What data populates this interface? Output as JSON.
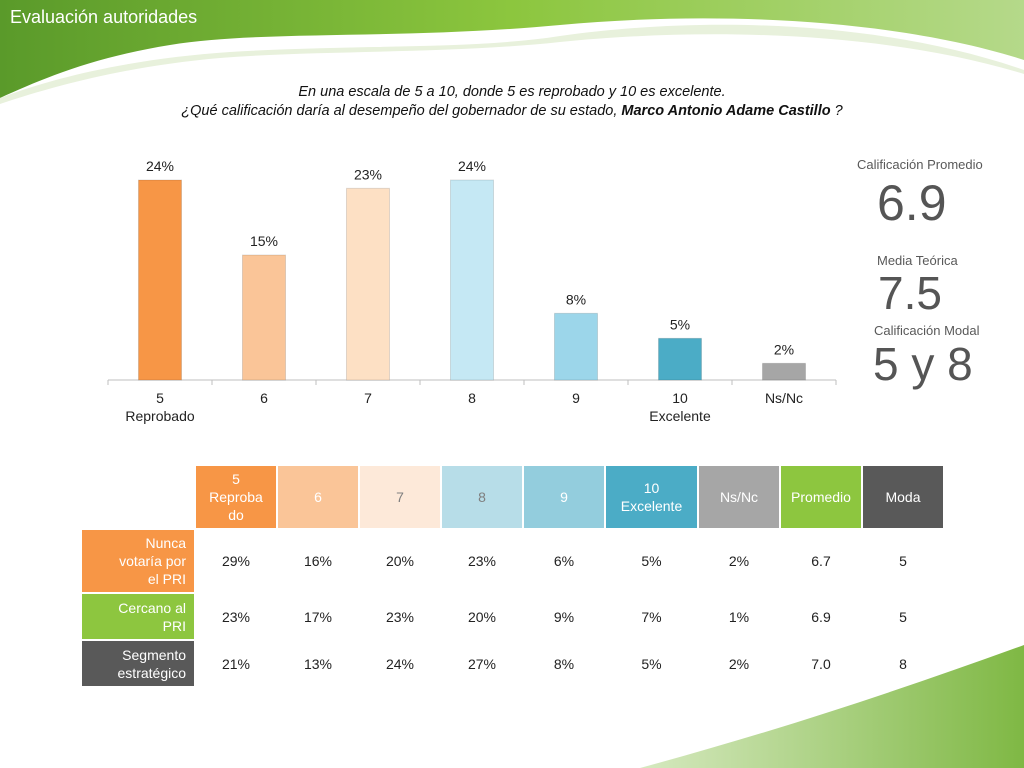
{
  "page_title": "Evaluación autoridades",
  "question": {
    "line1": "En una escala de 5 a 10, donde 5 es reprobado y 10 es excelente.",
    "line2_prefix": "¿Qué calificación daría al desempeño del gobernador de su estado, ",
    "line2_bold": "Marco Antonio Adame Castillo",
    "line2_suffix": " ?"
  },
  "stats": {
    "avg_label": "Calificación Promedio",
    "avg_value": "6.9",
    "theoretical_label": "Media Teórica",
    "theoretical_value": "7.5",
    "mode_label": "Calificación Modal",
    "mode_value": "5 y 8"
  },
  "colors": {
    "green": "#8dc63f",
    "dark": "#555555",
    "orange": "#f7964a"
  },
  "chart_data": {
    "type": "bar",
    "categories": [
      "5\nReprobado",
      "6",
      "7",
      "8",
      "9",
      "10\nExcelente",
      "Ns/Nc"
    ],
    "values": [
      24,
      15,
      23,
      24,
      8,
      5,
      2
    ],
    "data_labels": [
      "24%",
      "15%",
      "23%",
      "24%",
      "8%",
      "5%",
      "2%"
    ],
    "bar_colors": [
      "#f79646",
      "#fac598",
      "#fde0c4",
      "#c5e8f4",
      "#9cd6ea",
      "#4bacc6",
      "#a6a6a6"
    ],
    "ylim": [
      0,
      30
    ],
    "grid": false
  },
  "table": {
    "headers": [
      "5\nReproba\ndo",
      "6",
      "7",
      "8",
      "9",
      "10\nExcelente",
      "Ns/Nc",
      "Promedio",
      "Moda"
    ],
    "header_colors": [
      "#f79646",
      "#fac598",
      "#fde9d9",
      "#b7dde8",
      "#93cddd",
      "#4bacc6",
      "#a6a6a6",
      "#8dc63f",
      "#595959"
    ],
    "header_text_colors": [
      "#ffffff",
      "#ffffff",
      "#7f7f7f",
      "#7f7f7f",
      "#ffffff",
      "#ffffff",
      "#ffffff",
      "#ffffff",
      "#ffffff"
    ],
    "rows": [
      {
        "label": "Nunca\nvotaría por\nel PRI",
        "color": "#f79646",
        "values": [
          "29%",
          "16%",
          "20%",
          "23%",
          "6%",
          "5%",
          "2%",
          "6.7",
          "5"
        ]
      },
      {
        "label": "Cercano al\nPRI",
        "color": "#8dc63f",
        "values": [
          "23%",
          "17%",
          "23%",
          "20%",
          "9%",
          "7%",
          "1%",
          "6.9",
          "5"
        ]
      },
      {
        "label": "Segmento\nestratégico",
        "color": "#595959",
        "values": [
          "21%",
          "13%",
          "24%",
          "27%",
          "8%",
          "5%",
          "2%",
          "7.0",
          "8"
        ]
      }
    ]
  }
}
